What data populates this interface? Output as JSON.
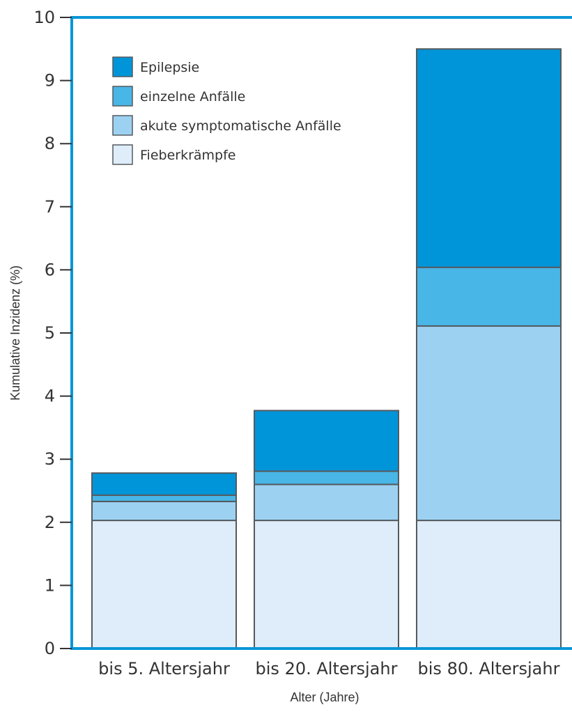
{
  "chart_data": {
    "type": "bar",
    "stacked": true,
    "categories": [
      "bis 5. Altersjahr",
      "bis 20. Altersjahr",
      "bis 80. Altersjahr"
    ],
    "series": [
      {
        "name": "Fieberkrämpfe",
        "values": [
          2.03,
          2.03,
          2.03
        ],
        "color": "#deedf9"
      },
      {
        "name": "akute symptomatische Anfälle",
        "values": [
          0.3,
          0.57,
          3.08
        ],
        "color": "#9dd1f1"
      },
      {
        "name": "einzelne Anfälle",
        "values": [
          0.1,
          0.21,
          0.93
        ],
        "color": "#48b6e7"
      },
      {
        "name": "Epilepsie",
        "values": [
          0.35,
          0.96,
          3.46
        ],
        "color": "#0095d9"
      }
    ],
    "legend_order": [
      "Epilepsie",
      "einzelne Anfälle",
      "akute symptomatische Anfälle",
      "Fieberkrämpfe"
    ],
    "title": "",
    "xlabel": "Alter (Jahre)",
    "ylabel": "Kumulative Inzidenz (%)",
    "ylim": [
      0,
      10
    ],
    "yticks": [
      "0",
      "1",
      "2",
      "3",
      "4",
      "5",
      "6",
      "7",
      "8",
      "9",
      "10"
    ],
    "grid": false,
    "legend_position": "top-left",
    "axis_color": "#0a96d6",
    "bar_outline_color": "#555a5f"
  }
}
